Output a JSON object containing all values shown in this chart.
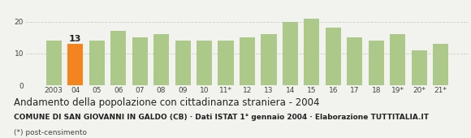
{
  "categories": [
    "2003",
    "04",
    "05",
    "06",
    "07",
    "08",
    "09",
    "10",
    "11*",
    "12",
    "13",
    "14",
    "15",
    "16",
    "17",
    "18",
    "19*",
    "20*",
    "21*"
  ],
  "values": [
    14,
    13,
    14,
    17,
    15,
    16,
    14,
    14,
    14,
    15,
    16,
    20,
    21,
    18,
    15,
    14,
    16,
    11,
    13
  ],
  "highlight_index": 1,
  "bar_color": "#adc98a",
  "highlight_color": "#f4841e",
  "highlight_label": "13",
  "title": "Andamento della popolazione con cittadinanza straniera - 2004",
  "subtitle": "COMUNE DI SAN GIOVANNI IN GALDO (CB) · Dati ISTAT 1° gennaio 2004 · Elaborazione TUTTITALIA.IT",
  "footnote": "(*) post-censimento",
  "ylim": [
    0,
    25
  ],
  "yticks": [
    0,
    10,
    20
  ],
  "background_color": "#f2f2ee",
  "grid_color": "#cccccc",
  "title_fontsize": 8.5,
  "subtitle_fontsize": 6.5,
  "footnote_fontsize": 6.5,
  "tick_fontsize": 6.5
}
